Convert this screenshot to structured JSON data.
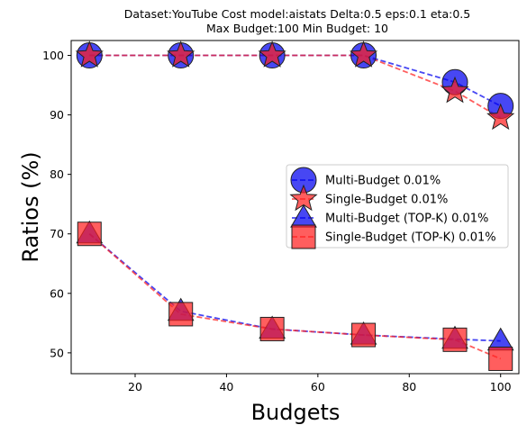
{
  "chart_data": {
    "type": "line",
    "title_lines": [
      "Dataset:YouTube Cost model:aistats Delta:0.5 eps:0.1 eta:0.5",
      "Max Budget:100 Min Budget: 10"
    ],
    "xlabel": "Budgets",
    "ylabel": "Ratios (%)",
    "xlim": [
      6,
      104
    ],
    "ylim": [
      46.5,
      102.5
    ],
    "xticks": [
      20,
      40,
      60,
      80,
      100
    ],
    "yticks": [
      50,
      60,
      70,
      80,
      90,
      100
    ],
    "grid": false,
    "legend_position": "center-right",
    "x": [
      10,
      30,
      50,
      70,
      90,
      100
    ],
    "series": [
      {
        "name": "Multi-Budget 0.01%",
        "marker": "circle",
        "color": "#0000ee",
        "values": [
          100,
          100,
          100,
          100,
          95.5,
          91.5
        ]
      },
      {
        "name": "Single-Budget 0.01%",
        "marker": "star",
        "color": "#ff2020",
        "values": [
          100,
          100,
          100,
          100,
          94,
          89.5
        ]
      },
      {
        "name": "Multi-Budget (TOP-K) 0.01%",
        "marker": "triangle",
        "color": "#0000ee",
        "values": [
          70,
          57,
          54,
          53,
          52.3,
          52
        ]
      },
      {
        "name": "Single-Budget (TOP-K) 0.01%",
        "marker": "square",
        "color": "#ff2020",
        "values": [
          70,
          56.5,
          54,
          53,
          52.2,
          49
        ]
      }
    ]
  }
}
